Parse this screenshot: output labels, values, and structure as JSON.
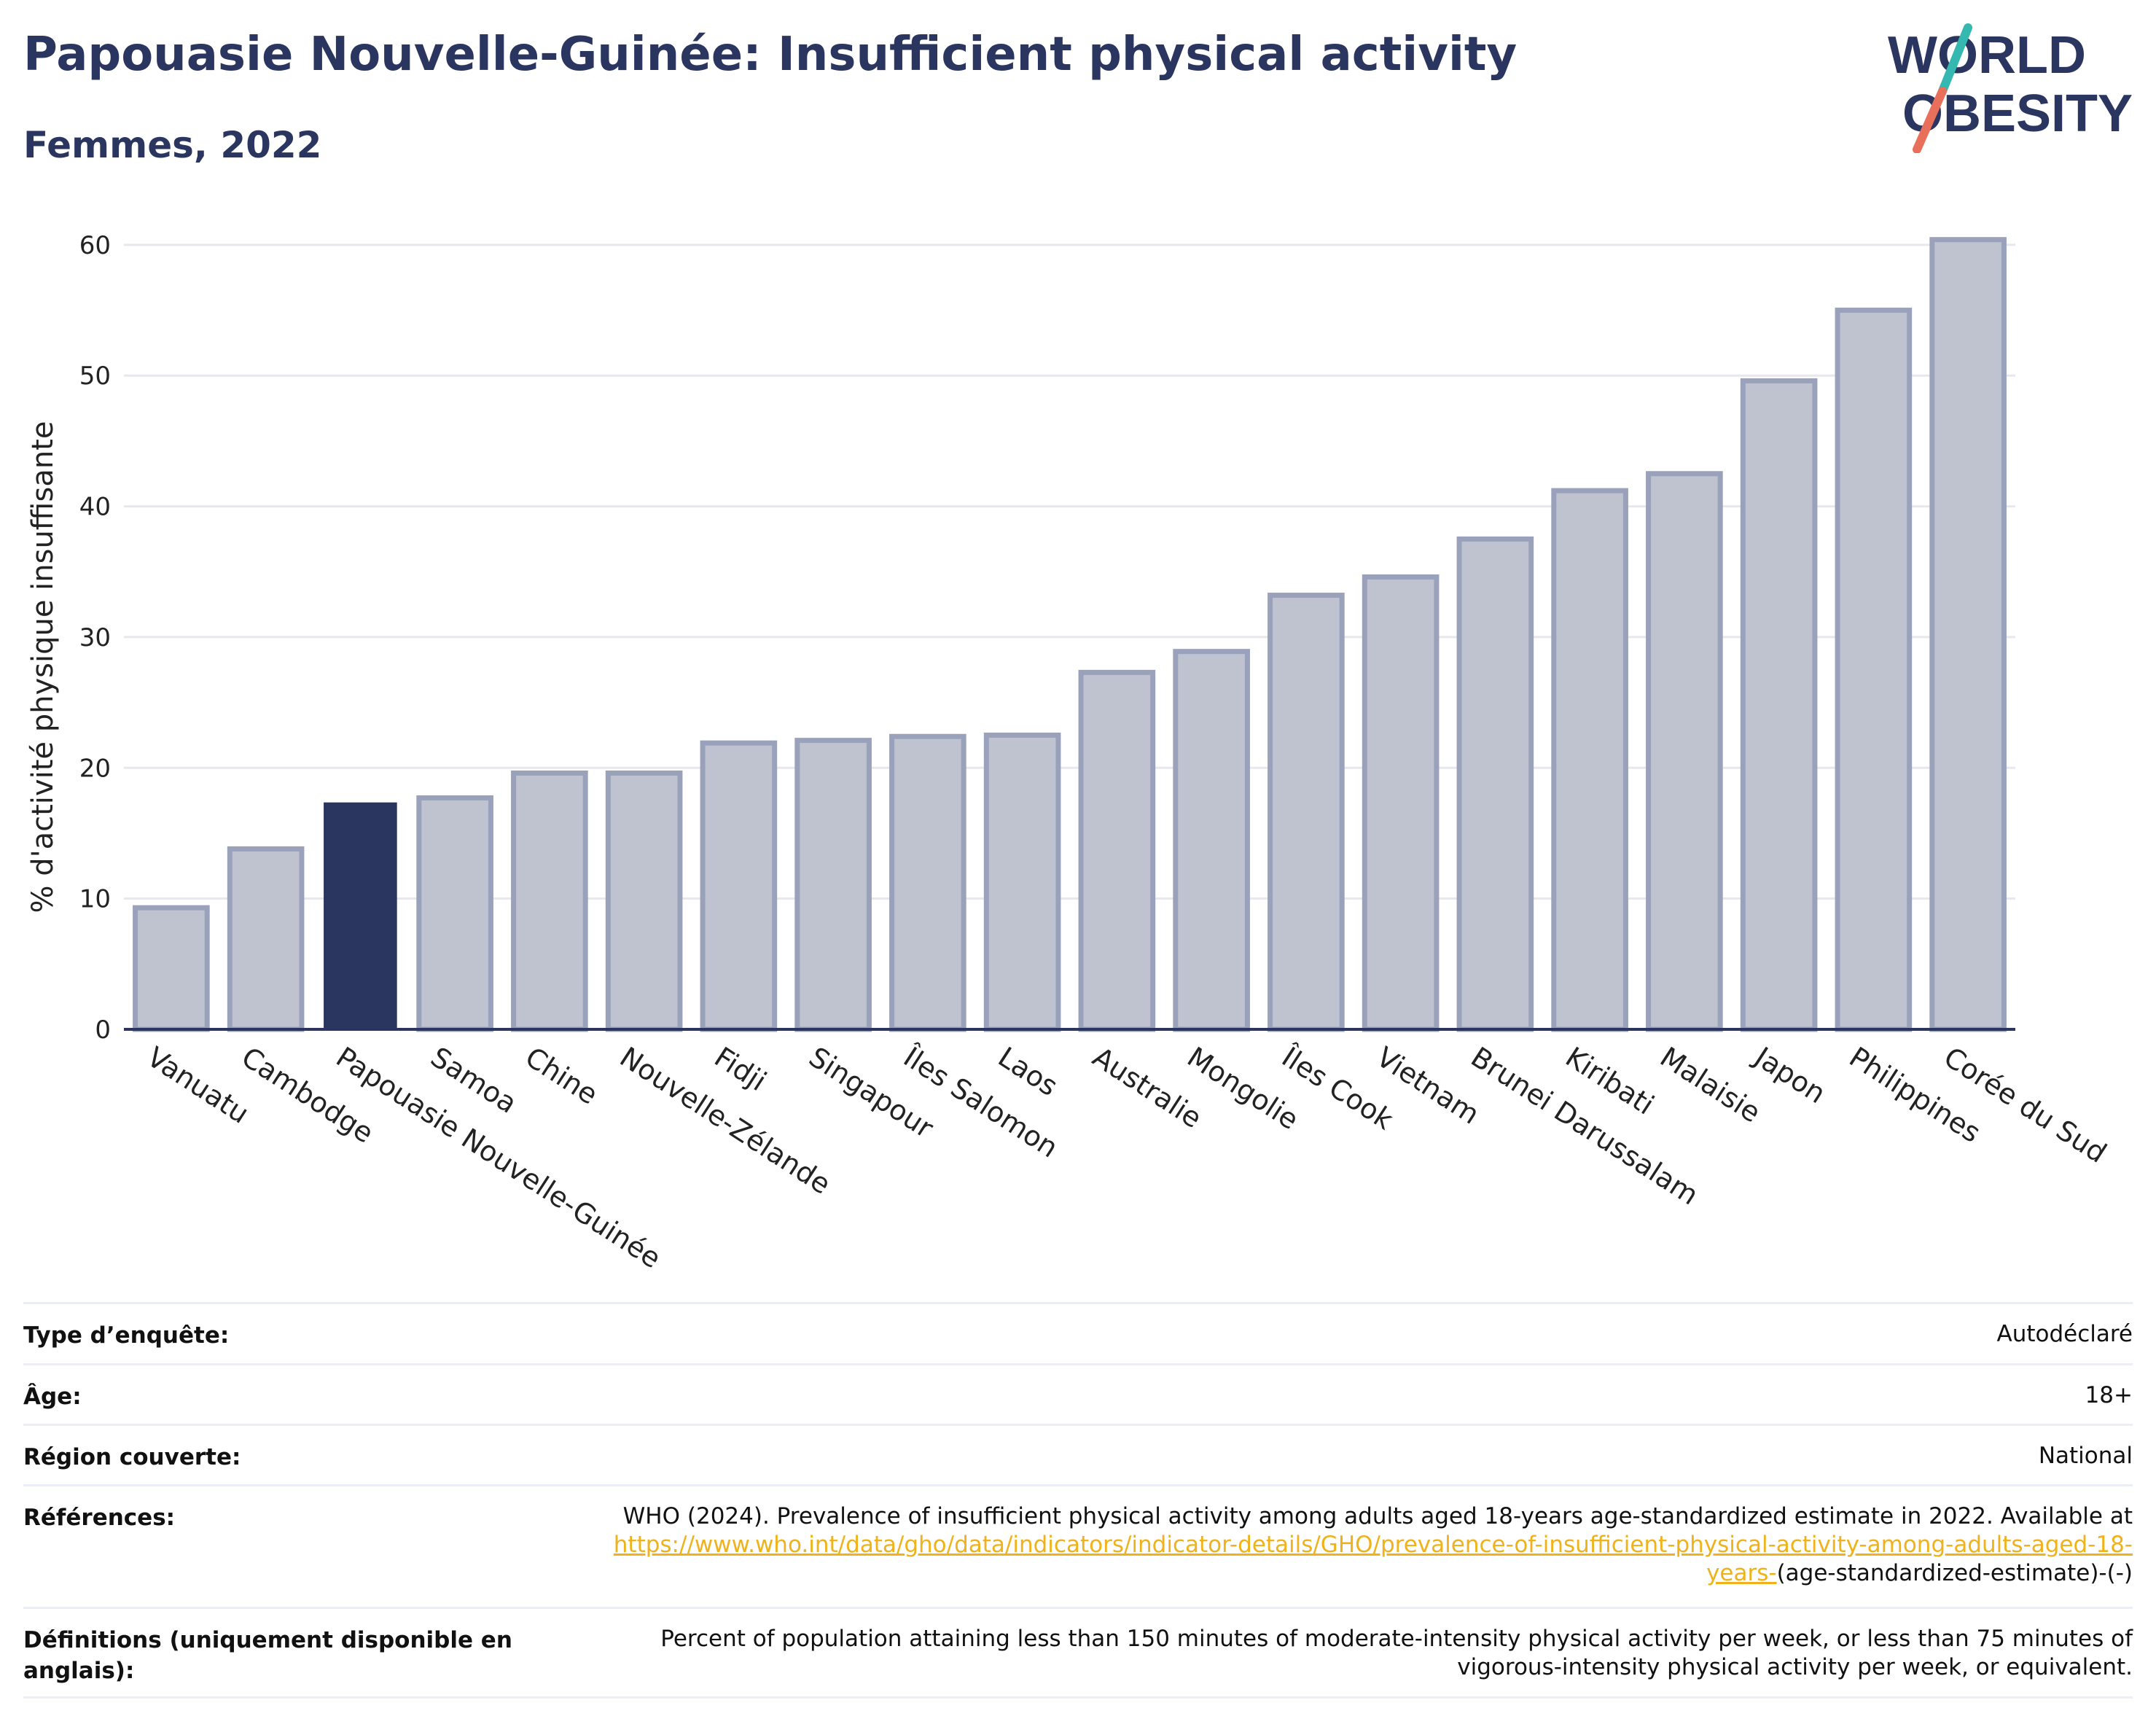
{
  "header": {
    "title": "Papouasie Nouvelle-Guinée: Insufficient physical activity",
    "subtitle": "Femmes, 2022"
  },
  "logo": {
    "line1": "WORLD",
    "line2": "OBESITY"
  },
  "colors": {
    "highlight": "#2a3560",
    "bar_fill": "#bfc3d0",
    "bar_stroke": "#9aa1ba",
    "grid": "#e6e8ee",
    "link": "#f0b21a",
    "logo_teal": "#34b8b0",
    "logo_coral": "#e8705a"
  },
  "chart_data": {
    "type": "bar",
    "ylabel": "% d'activité physique insuffisante",
    "ylim": [
      0,
      62
    ],
    "yticks": [
      0,
      10,
      20,
      30,
      40,
      50,
      60
    ],
    "grid": true,
    "highlight": "Papouasie Nouvelle-Guinée",
    "categories": [
      "Vanuatu",
      "Cambodge",
      "Papouasie Nouvelle-Guinée",
      "Samoa",
      "Chine",
      "Nouvelle-Zélande",
      "Fidji",
      "Singapour",
      "Îles Salomon",
      "Laos",
      "Australie",
      "Mongolie",
      "Îles Cook",
      "Vietnam",
      "Brunei Darussalam",
      "Kiribati",
      "Malaisie",
      "Japon",
      "Philippines",
      "Corée du Sud"
    ],
    "values": [
      9.3,
      13.8,
      17.3,
      17.7,
      19.6,
      19.6,
      21.9,
      22.1,
      22.4,
      22.5,
      27.3,
      28.9,
      33.2,
      34.6,
      37.5,
      41.2,
      42.5,
      49.6,
      55.0,
      60.4
    ]
  },
  "info": {
    "rows": [
      {
        "key": "Type d’enquête:",
        "value": "Autodéclaré"
      },
      {
        "key": "Âge:",
        "value": "18+"
      },
      {
        "key": "Région couverte:",
        "value": "National"
      }
    ],
    "references": {
      "key": "Références:",
      "text_before": "WHO (2024). Prevalence of insufficient physical activity among adults aged 18-years age-standardized estimate in 2022. Available at",
      "link": "https://www.who.int/data/gho/data/indicators/indicator-details/GHO/prevalence-of-insufficient-physical-activity-among-adults-aged-18-years-",
      "text_after": "(age-standardized-estimate)-(-)"
    },
    "definitions": {
      "key": "Définitions (uniquement disponible en anglais):",
      "value": "Percent of population attaining less than 150 minutes of moderate-intensity physical activity per week, or less than 75 minutes of vigorous-intensity physical activity per week, or equivalent."
    }
  }
}
